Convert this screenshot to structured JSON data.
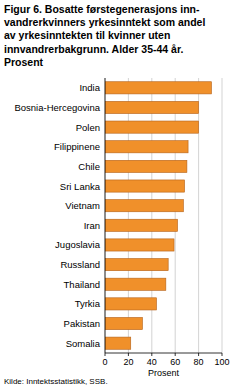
{
  "chart_data": {
    "type": "bar",
    "orientation": "horizontal",
    "title": "Figur 6. Bosatte førstegenerasjons inn-\nvandrerkvinners yrkesinntekt som andel\nav yrkesinntekten til kvinner uten\ninnvandrerbakgrunn. Alder 35-44 år.\nProsent",
    "x_label": "Prosent",
    "source": "Kilde: Inntektsstatistikk, SSB.",
    "categories": [
      "India",
      "Bosnia-Hercegovina",
      "Polen",
      "Filippinene",
      "Chile",
      "Sri Lanka",
      "Vietnam",
      "Iran",
      "Jugoslavia",
      "Russland",
      "Thailand",
      "Tyrkia",
      "Pakistan",
      "Somalia"
    ],
    "values": [
      91,
      80,
      80,
      71,
      70,
      68,
      67,
      62,
      59,
      54,
      52,
      44,
      32,
      22
    ],
    "color": "#f0902a",
    "xlim": [
      0,
      100
    ],
    "xticks": [
      0,
      20,
      40,
      60,
      80,
      100
    ],
    "grid": true
  }
}
